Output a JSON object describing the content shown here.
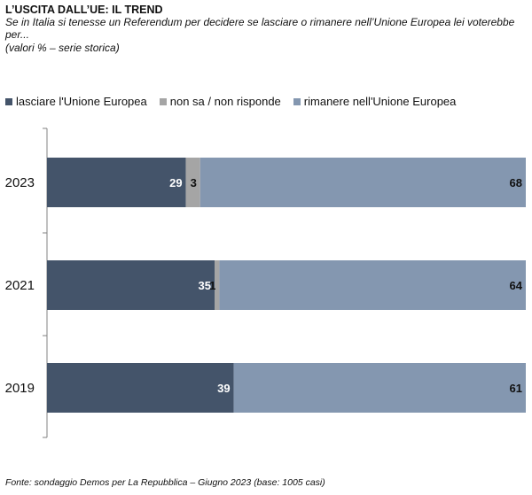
{
  "header": {
    "title": "L’USCITA DALL’UE: IL TREND",
    "subtitle": "Se in Italia si tenesse un Referendum per decidere se lasciare o rimanere nell’Unione Europea lei voterebbe per...",
    "note": "(valori %  – serie storica)"
  },
  "footer": {
    "source": "Fonte: sondaggio Demos per La Repubblica – Giugno 2023 (base: 1005 casi)"
  },
  "chart_data": {
    "type": "bar",
    "orientation": "horizontal",
    "stacked": true,
    "categories": [
      "2023",
      "2021",
      "2019"
    ],
    "series": [
      {
        "name": "lasciare l'Unione Europea",
        "values": [
          29,
          35,
          39
        ],
        "color": "#44546a",
        "label_color": "#ffffff"
      },
      {
        "name": "non sa / non risponde",
        "values": [
          3,
          1,
          0
        ],
        "color": "#a5a5a5",
        "label_color": "#111111"
      },
      {
        "name": "rimanere nell'Unione Europea",
        "values": [
          68,
          64,
          61
        ],
        "color": "#8497b0",
        "label_color": "#111111"
      }
    ],
    "xlim": [
      0,
      100
    ],
    "grid": false,
    "legend": "top"
  }
}
